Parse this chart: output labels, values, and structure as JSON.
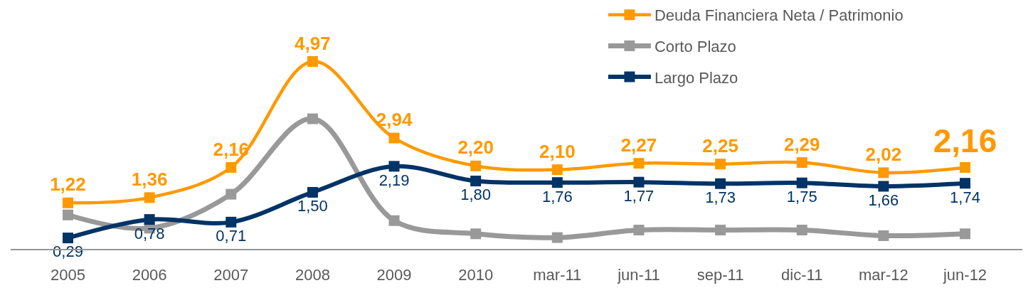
{
  "chart_data": {
    "type": "line",
    "categories": [
      "2005",
      "2006",
      "2007",
      "2008",
      "2009",
      "2010",
      "mar-11",
      "jun-11",
      "sep-11",
      "dic-11",
      "mar-12",
      "jun-12"
    ],
    "series": [
      {
        "name": "Deuda Financiera Neta / Patrimonio",
        "color": "#ff9900",
        "values": [
          1.22,
          1.36,
          2.16,
          4.97,
          2.94,
          2.2,
          2.1,
          2.27,
          2.25,
          2.29,
          2.02,
          2.16
        ],
        "value_labels": [
          "1,22",
          "1,36",
          "2,16",
          "4,97",
          "2,94",
          "2,20",
          "2,10",
          "2,27",
          "2,25",
          "2,29",
          "2,02",
          "2,16"
        ]
      },
      {
        "name": "Corto Plazo",
        "color": "#999999",
        "values": [
          0.9,
          0.55,
          1.45,
          3.45,
          0.75,
          0.4,
          0.3,
          0.5,
          0.5,
          0.5,
          0.35,
          0.4
        ]
      },
      {
        "name": "Largo Plazo",
        "color": "#003366",
        "values": [
          0.29,
          0.78,
          0.71,
          1.5,
          2.19,
          1.8,
          1.76,
          1.77,
          1.73,
          1.75,
          1.66,
          1.74
        ],
        "value_labels": [
          "0,29",
          "0,78",
          "0,71",
          "1,50",
          "2,19",
          "1,80",
          "1,76",
          "1,77",
          "1,73",
          "1,75",
          "1,66",
          "1,74"
        ]
      }
    ],
    "ylim": [
      0,
      6.6
    ],
    "tick_labels": "x",
    "grid": false,
    "legend": "top right",
    "marker": "square",
    "line_style": "solid"
  }
}
